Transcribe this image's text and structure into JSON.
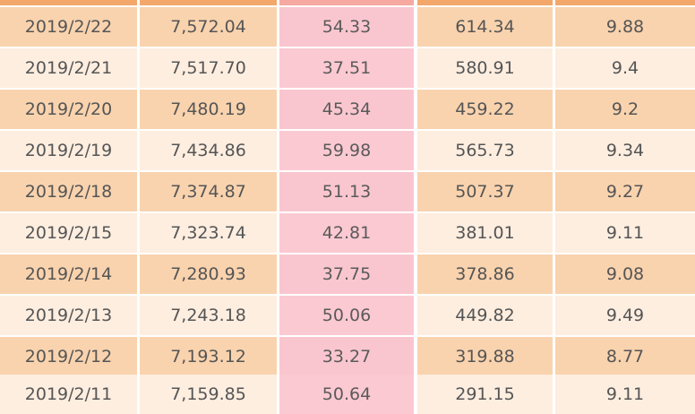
{
  "table": {
    "rows": [
      [
        "2019/2/22",
        "7,572.04",
        "54.33",
        "614.34",
        "9.88"
      ],
      [
        "2019/2/21",
        "7,517.70",
        "37.51",
        "580.91",
        "9.4"
      ],
      [
        "2019/2/20",
        "7,480.19",
        "45.34",
        "459.22",
        "9.2"
      ],
      [
        "2019/2/19",
        "7,434.86",
        "59.98",
        "565.73",
        "9.34"
      ],
      [
        "2019/2/18",
        "7,374.87",
        "51.13",
        "507.37",
        "9.27"
      ],
      [
        "2019/2/15",
        "7,323.74",
        "42.81",
        "381.01",
        "9.11"
      ],
      [
        "2019/2/14",
        "7,280.93",
        "37.75",
        "378.86",
        "9.08"
      ],
      [
        "2019/2/13",
        "7,243.18",
        "50.06",
        "449.82",
        "9.49"
      ],
      [
        "2019/2/12",
        "7,193.12",
        "33.27",
        "319.88",
        "8.77"
      ],
      [
        "2019/2/11",
        "7,159.85",
        "50.64",
        "291.15",
        "9.11"
      ]
    ]
  },
  "colors": {
    "header": "#f4a76a",
    "row_dark": "#f9d3ae",
    "row_light": "#fdeee0",
    "highlight_column": "#f9c6cf",
    "text": "#555555"
  }
}
